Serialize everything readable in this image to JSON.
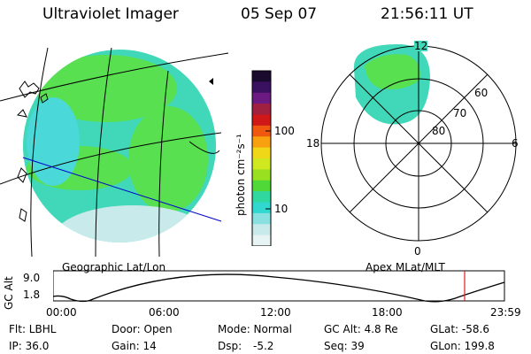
{
  "header": {
    "title": "Ultraviolet Imager",
    "date": "05 Sep 07",
    "time": "21:56:11 UT"
  },
  "colorbar": {
    "unit_label": "photon cm⁻²s⁻¹",
    "ticks": [
      "100",
      "10"
    ],
    "colors": [
      "#1a0a2e",
      "#3a1060",
      "#6a1a80",
      "#a02040",
      "#d01818",
      "#f05810",
      "#f8a010",
      "#f0d818",
      "#d0e820",
      "#98e020",
      "#50d838",
      "#30d8a0",
      "#30d8d0",
      "#88e0e0",
      "#c8eaea",
      "#e8f4f4"
    ]
  },
  "left_map": {
    "caption": "Geographic Lat/Lon",
    "colors": {
      "base": "#40d8b8",
      "green": "#58e050",
      "cyan": "#4ad8d8",
      "pale": "#c8eaea"
    }
  },
  "polar_map": {
    "caption": "Apex MLat/MLT",
    "mlt_labels": {
      "top": "12",
      "left": "18",
      "right": "6",
      "bottom": "0"
    },
    "lat_labels": [
      "60",
      "70",
      "80"
    ]
  },
  "altitude_plot": {
    "ylabel": "GC Alt",
    "yticks": [
      "9.0",
      "1.8"
    ],
    "xticks": [
      "00:00",
      "06:00",
      "12:00",
      "18:00",
      "23:59"
    ],
    "marker_color": "#e02020"
  },
  "status": {
    "flt": "Flt: LBHL",
    "ip": "IP: 36.0",
    "door": "Door: Open",
    "gain": "Gain: 14",
    "mode": "Mode: Normal",
    "dsp_label": "Dsp:",
    "dsp_value": "-5.2",
    "gc_alt": "GC Alt: 4.8 Re",
    "seq": "Seq: 39",
    "glat": "GLat: -58.6",
    "glon": "GLon: 199.8"
  }
}
